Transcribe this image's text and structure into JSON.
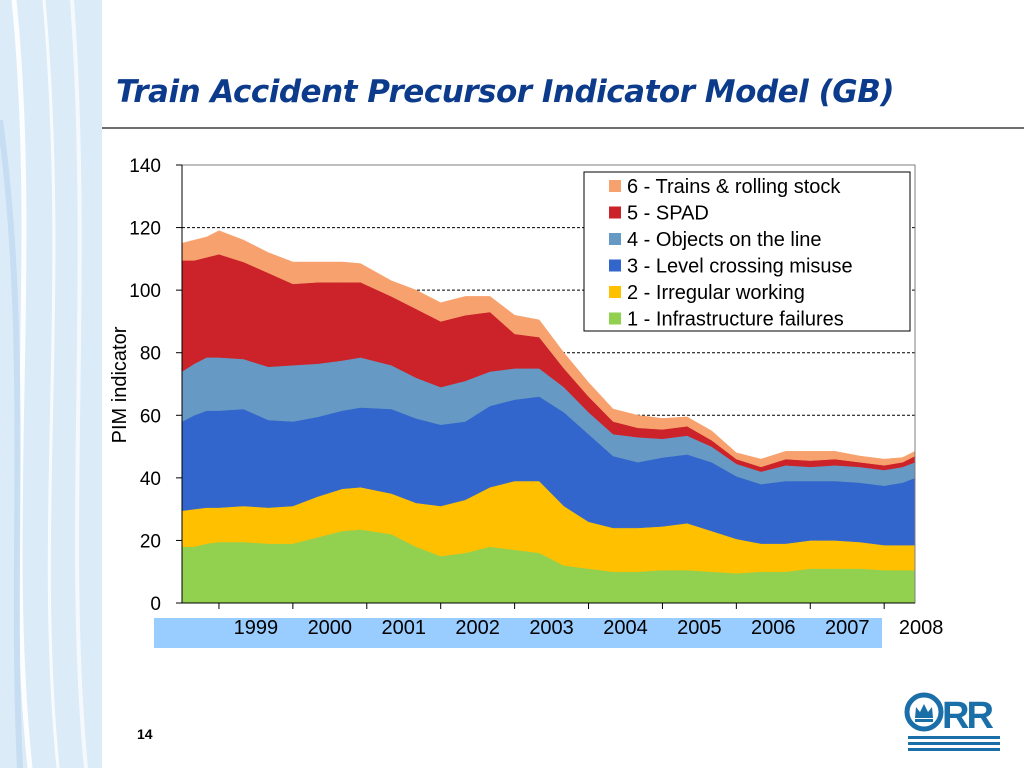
{
  "slide": {
    "title": "Train Accident Precursor Indicator Model (GB)",
    "page_number": "14"
  },
  "logo": {
    "text": "ORR",
    "color": "#1a6fa8",
    "icon": "crown-icon"
  },
  "chart_data": {
    "type": "area",
    "stacked": true,
    "title": "",
    "xlabel": "",
    "ylabel": "PIM indicator",
    "ylim": [
      0,
      140
    ],
    "yticks": [
      0,
      20,
      40,
      60,
      80,
      100,
      120,
      140
    ],
    "xlim": [
      1998.5,
      2008.417
    ],
    "xticks": [
      "1999",
      "2000",
      "2001",
      "2002",
      "2003",
      "2004",
      "2005",
      "2006",
      "2007",
      "2008"
    ],
    "grid": "horizontal-dashed",
    "legend_position": "top-right",
    "x": [
      1998.5,
      1998.667,
      1998.833,
      1999.0,
      1999.333,
      1999.667,
      2000.0,
      2000.333,
      2000.667,
      2000.917,
      2001.333,
      2001.667,
      2002.0,
      2002.333,
      2002.667,
      2003.0,
      2003.333,
      2003.667,
      2004.0,
      2004.333,
      2004.667,
      2005.0,
      2005.333,
      2005.667,
      2006.0,
      2006.333,
      2006.667,
      2007.0,
      2007.333,
      2007.667,
      2008.0,
      2008.25,
      2008.417
    ],
    "series": [
      {
        "name": "1 - Infrastructure failures",
        "color": "#92d050",
        "values": [
          18,
          18,
          19,
          19.5,
          19.5,
          19,
          19,
          21,
          23,
          23.5,
          22,
          18,
          15,
          16,
          18,
          17,
          16,
          12,
          11,
          10,
          10,
          10.5,
          10.5,
          10,
          9.5,
          10,
          10,
          11,
          11,
          11,
          10.5,
          10.5,
          10.5
        ]
      },
      {
        "name": "2 - Irregular working",
        "color": "#ffc000",
        "values": [
          11.5,
          12,
          11.5,
          11,
          11.5,
          11.5,
          12,
          13,
          13.5,
          13.5,
          13,
          14,
          16,
          17,
          19,
          22,
          23,
          19,
          15,
          14,
          14,
          14,
          15,
          13,
          11,
          9,
          9,
          9,
          9,
          8.5,
          8,
          8,
          8
        ]
      },
      {
        "name": "3 - Level crossing misuse",
        "color": "#3366cc",
        "values": [
          28.5,
          30,
          31,
          31,
          31,
          28,
          27,
          25.5,
          25,
          25.5,
          27,
          27,
          26,
          25,
          26,
          26,
          27,
          30,
          28,
          23,
          21,
          22,
          22,
          22,
          20,
          19,
          20,
          19,
          19,
          19,
          19,
          20,
          21.5
        ]
      },
      {
        "name": "4 - Objects on the line",
        "color": "#6699c3",
        "values": [
          16,
          16.5,
          17,
          17,
          16,
          17,
          18,
          17,
          16,
          16,
          14,
          13,
          12,
          13,
          11,
          10,
          9,
          8,
          7,
          7,
          8,
          6,
          6,
          5,
          4,
          4,
          5,
          4.5,
          5,
          5,
          5,
          5,
          5
        ]
      },
      {
        "name": "5 - SPAD",
        "color": "#cc2229",
        "values": [
          35.5,
          33,
          32,
          33,
          31,
          30,
          26,
          26,
          25,
          24,
          22,
          22,
          21,
          21,
          19,
          11,
          10,
          6,
          5,
          4,
          3,
          3,
          3,
          2,
          1.5,
          1.5,
          2,
          2,
          2,
          1.5,
          1.5,
          1.5,
          2
        ]
      },
      {
        "name": "6 - Trains & rolling stock",
        "color": "#f7a26e",
        "values": [
          5.5,
          6.5,
          6.5,
          7.5,
          7,
          6.5,
          7,
          6.5,
          6.5,
          6,
          5,
          6,
          6,
          6,
          5,
          6,
          5.5,
          5,
          4.5,
          4,
          4,
          3.5,
          3,
          3,
          2,
          2.5,
          2.5,
          3,
          2.5,
          2,
          2,
          1.5,
          1.5
        ]
      }
    ]
  }
}
